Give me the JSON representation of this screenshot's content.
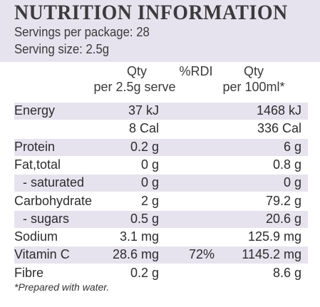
{
  "header": {
    "title": "NUTRITION INFORMATION",
    "servings_per_package": "Servings per package: 28",
    "serving_size": "Serving size: 2.5g"
  },
  "columns": {
    "serve_line1": "Qty",
    "serve_line2": "per 2.5g serve",
    "rdi": "%RDI",
    "per100_line1": "Qty",
    "per100_line2": "per 100ml*"
  },
  "rows": [
    {
      "label": "Energy",
      "serve": "37 kJ",
      "rdi": "",
      "per100": "1468 kJ",
      "shaded": true
    },
    {
      "label": "",
      "serve": "8 Cal",
      "rdi": "",
      "per100": "336 Cal",
      "shaded": false
    },
    {
      "label": "Protein",
      "serve": "0.2 g",
      "rdi": "",
      "per100": "6 g",
      "shaded": true
    },
    {
      "label": "Fat,total",
      "serve": "0 g",
      "rdi": "",
      "per100": "0.8 g",
      "shaded": false
    },
    {
      "label": "- saturated",
      "serve": "0 g",
      "rdi": "",
      "per100": "0 g",
      "shaded": true
    },
    {
      "label": "Carbohydrate",
      "serve": "2 g",
      "rdi": "",
      "per100": "79.2 g",
      "shaded": false
    },
    {
      "label": "- sugars",
      "serve": "0.5 g",
      "rdi": "",
      "per100": "20.6 g",
      "shaded": true
    },
    {
      "label": "Sodium",
      "serve": "3.1 mg",
      "rdi": "",
      "per100": "125.9 mg",
      "shaded": false
    },
    {
      "label": "Vitamin C",
      "serve": "28.6 mg",
      "rdi": "72%",
      "per100": "1145.2 mg",
      "shaded": true
    },
    {
      "label": "Fibre",
      "serve": "0.2 g",
      "rdi": "",
      "per100": "8.6 g",
      "shaded": false
    }
  ],
  "footnote": "*Prepared with water.",
  "colors": {
    "band": "#e7e3ee",
    "text": "#2c2c2c"
  }
}
